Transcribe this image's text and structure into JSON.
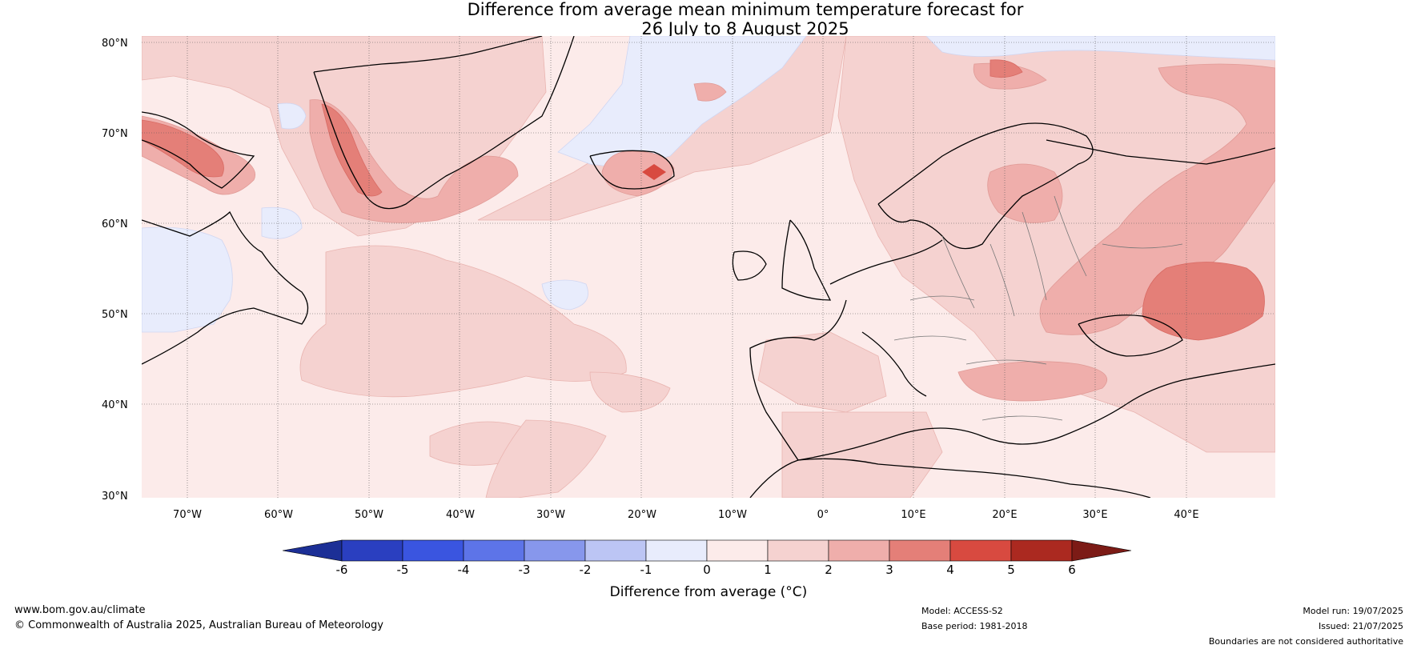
{
  "title": {
    "line1": "Difference from average mean minimum temperature forecast for",
    "line2": "26 July to 8 August 2025"
  },
  "map": {
    "latitude_labels": [
      "80°N",
      "70°N",
      "60°N",
      "50°N",
      "40°N",
      "30°N"
    ],
    "longitude_labels": [
      "70°W",
      "60°W",
      "50°W",
      "40°W",
      "30°W",
      "20°W",
      "10°W",
      "0°",
      "10°E",
      "20°E",
      "30°E",
      "40°E"
    ]
  },
  "colorbar": {
    "ticks": [
      "-6",
      "-5",
      "-4",
      "-3",
      "-2",
      "-1",
      "0",
      "1",
      "2",
      "3",
      "4",
      "5",
      "6"
    ],
    "colors": [
      "#1c2f96",
      "#2a3fc0",
      "#3a55e0",
      "#5d74e8",
      "#8797ec",
      "#bcc5f4",
      "#e8ecfc",
      "#fcebea",
      "#f5d2d0",
      "#efaeab",
      "#e47f78",
      "#d84a40",
      "#ab2920",
      "#7c1b16"
    ],
    "label": "Difference from average (°C)"
  },
  "footer": {
    "website": "www.bom.gov.au/climate",
    "copyright": "© Commonwealth of Australia 2025, Australian Bureau of Meteorology",
    "model": "Model: ACCESS-S2",
    "base_period": "Base period: 1981-2018",
    "model_run": "Model run: 19/07/2025",
    "issued": "Issued: 21/07/2025",
    "disclaimer": "Boundaries are not considered authoritative"
  }
}
